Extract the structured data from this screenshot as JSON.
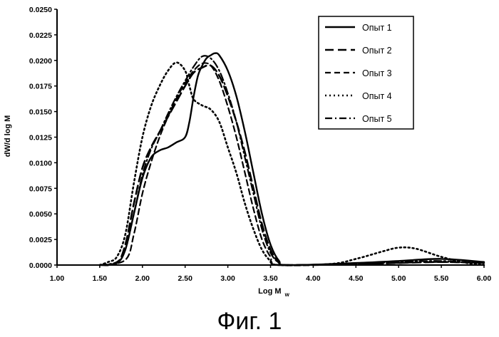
{
  "figure": {
    "caption": "Фиг. 1"
  },
  "chart_data": {
    "type": "line",
    "xlabel": "Log M",
    "xlabel_subscript": "w",
    "ylabel": "dW/d log M",
    "xlim": [
      1.0,
      6.0
    ],
    "ylim": [
      0.0,
      0.025
    ],
    "x_ticks": [
      "1.00",
      "1.50",
      "2.00",
      "2.50",
      "3.00",
      "3.50",
      "4.00",
      "4.50",
      "5.00",
      "5.50",
      "6.00"
    ],
    "y_ticks": [
      "0.0000",
      "0.0025",
      "0.0050",
      "0.0075",
      "0.0100",
      "0.0125",
      "0.0150",
      "0.0175",
      "0.0200",
      "0.0225",
      "0.0250"
    ],
    "grid": false,
    "legend_position": "top-right",
    "series": [
      {
        "name": "Опыт 1",
        "dash": "solid",
        "points": [
          [
            1.5,
            0
          ],
          [
            1.7,
            0.0002
          ],
          [
            1.8,
            0.0015
          ],
          [
            1.9,
            0.005
          ],
          [
            2.0,
            0.0085
          ],
          [
            2.1,
            0.0105
          ],
          [
            2.2,
            0.0112
          ],
          [
            2.3,
            0.0115
          ],
          [
            2.4,
            0.012
          ],
          [
            2.5,
            0.0125
          ],
          [
            2.55,
            0.014
          ],
          [
            2.6,
            0.0165
          ],
          [
            2.65,
            0.0185
          ],
          [
            2.7,
            0.0195
          ],
          [
            2.75,
            0.0202
          ],
          [
            2.8,
            0.0205
          ],
          [
            2.85,
            0.0207
          ],
          [
            2.9,
            0.0205
          ],
          [
            3.0,
            0.019
          ],
          [
            3.1,
            0.0165
          ],
          [
            3.2,
            0.013
          ],
          [
            3.3,
            0.009
          ],
          [
            3.4,
            0.005
          ],
          [
            3.5,
            0.002
          ],
          [
            3.6,
            0.0004
          ],
          [
            3.7,
            0
          ],
          [
            4.5,
            0.0002
          ],
          [
            5.0,
            0.0004
          ],
          [
            5.5,
            0.0006
          ],
          [
            6.0,
            0.0003
          ]
        ]
      },
      {
        "name": "Опыт 2",
        "dash": "long-dash",
        "points": [
          [
            1.5,
            0
          ],
          [
            1.7,
            0.0002
          ],
          [
            1.8,
            0.002
          ],
          [
            1.9,
            0.006
          ],
          [
            2.0,
            0.0095
          ],
          [
            2.1,
            0.0115
          ],
          [
            2.2,
            0.013
          ],
          [
            2.3,
            0.0145
          ],
          [
            2.4,
            0.016
          ],
          [
            2.5,
            0.0175
          ],
          [
            2.6,
            0.0188
          ],
          [
            2.7,
            0.0193
          ],
          [
            2.8,
            0.0195
          ],
          [
            2.9,
            0.0185
          ],
          [
            3.0,
            0.0165
          ],
          [
            3.1,
            0.014
          ],
          [
            3.2,
            0.011
          ],
          [
            3.3,
            0.0075
          ],
          [
            3.4,
            0.004
          ],
          [
            3.5,
            0.0015
          ],
          [
            3.6,
            0.0002
          ],
          [
            3.7,
            0
          ],
          [
            4.5,
            0.0001
          ],
          [
            5.0,
            0.0002
          ],
          [
            5.5,
            0.0003
          ],
          [
            6.0,
            0.0002
          ]
        ]
      },
      {
        "name": "Опыт 3",
        "dash": "medium-dash",
        "points": [
          [
            1.5,
            0
          ],
          [
            1.8,
            0.0005
          ],
          [
            1.9,
            0.003
          ],
          [
            2.0,
            0.007
          ],
          [
            2.1,
            0.01
          ],
          [
            2.2,
            0.0125
          ],
          [
            2.3,
            0.0145
          ],
          [
            2.4,
            0.0163
          ],
          [
            2.5,
            0.0178
          ],
          [
            2.6,
            0.019
          ],
          [
            2.7,
            0.0197
          ],
          [
            2.8,
            0.0195
          ],
          [
            2.9,
            0.018
          ],
          [
            3.0,
            0.0155
          ],
          [
            3.1,
            0.0125
          ],
          [
            3.2,
            0.009
          ],
          [
            3.3,
            0.0055
          ],
          [
            3.4,
            0.0025
          ],
          [
            3.5,
            0.0008
          ],
          [
            3.6,
            0
          ],
          [
            4.5,
            0.0001
          ],
          [
            5.0,
            0.0002
          ],
          [
            5.5,
            0.0003
          ],
          [
            6.0,
            0.0002
          ]
        ]
      },
      {
        "name": "Опыт 4",
        "dash": "dotted",
        "points": [
          [
            1.5,
            0
          ],
          [
            1.6,
            0.0003
          ],
          [
            1.7,
            0.0008
          ],
          [
            1.8,
            0.003
          ],
          [
            1.9,
            0.008
          ],
          [
            2.0,
            0.0125
          ],
          [
            2.1,
            0.0155
          ],
          [
            2.2,
            0.0175
          ],
          [
            2.3,
            0.019
          ],
          [
            2.4,
            0.0198
          ],
          [
            2.5,
            0.019
          ],
          [
            2.55,
            0.0175
          ],
          [
            2.6,
            0.0162
          ],
          [
            2.7,
            0.0156
          ],
          [
            2.8,
            0.0152
          ],
          [
            2.9,
            0.014
          ],
          [
            3.0,
            0.0115
          ],
          [
            3.1,
            0.009
          ],
          [
            3.2,
            0.006
          ],
          [
            3.3,
            0.0035
          ],
          [
            3.4,
            0.0015
          ],
          [
            3.5,
            0.0004
          ],
          [
            3.6,
            0
          ],
          [
            4.2,
            0.0001
          ],
          [
            4.5,
            0.0006
          ],
          [
            4.8,
            0.0013
          ],
          [
            5.0,
            0.0017
          ],
          [
            5.2,
            0.0016
          ],
          [
            5.5,
            0.0008
          ],
          [
            5.8,
            0.0002
          ],
          [
            6.0,
            0
          ]
        ]
      },
      {
        "name": "Опыт 5",
        "dash": "dash-dot",
        "points": [
          [
            1.5,
            0
          ],
          [
            1.7,
            0.0003
          ],
          [
            1.8,
            0.0015
          ],
          [
            1.9,
            0.005
          ],
          [
            2.0,
            0.0088
          ],
          [
            2.1,
            0.0113
          ],
          [
            2.2,
            0.013
          ],
          [
            2.3,
            0.0148
          ],
          [
            2.4,
            0.0165
          ],
          [
            2.5,
            0.018
          ],
          [
            2.6,
            0.0194
          ],
          [
            2.7,
            0.0204
          ],
          [
            2.8,
            0.0202
          ],
          [
            2.9,
            0.019
          ],
          [
            3.0,
            0.0168
          ],
          [
            3.1,
            0.014
          ],
          [
            3.2,
            0.0105
          ],
          [
            3.3,
            0.007
          ],
          [
            3.4,
            0.0035
          ],
          [
            3.5,
            0.0012
          ],
          [
            3.6,
            0.0002
          ],
          [
            3.7,
            0
          ],
          [
            4.5,
            0.0001
          ],
          [
            5.0,
            0.0003
          ],
          [
            5.5,
            0.0004
          ],
          [
            6.0,
            0.0002
          ]
        ]
      }
    ]
  }
}
